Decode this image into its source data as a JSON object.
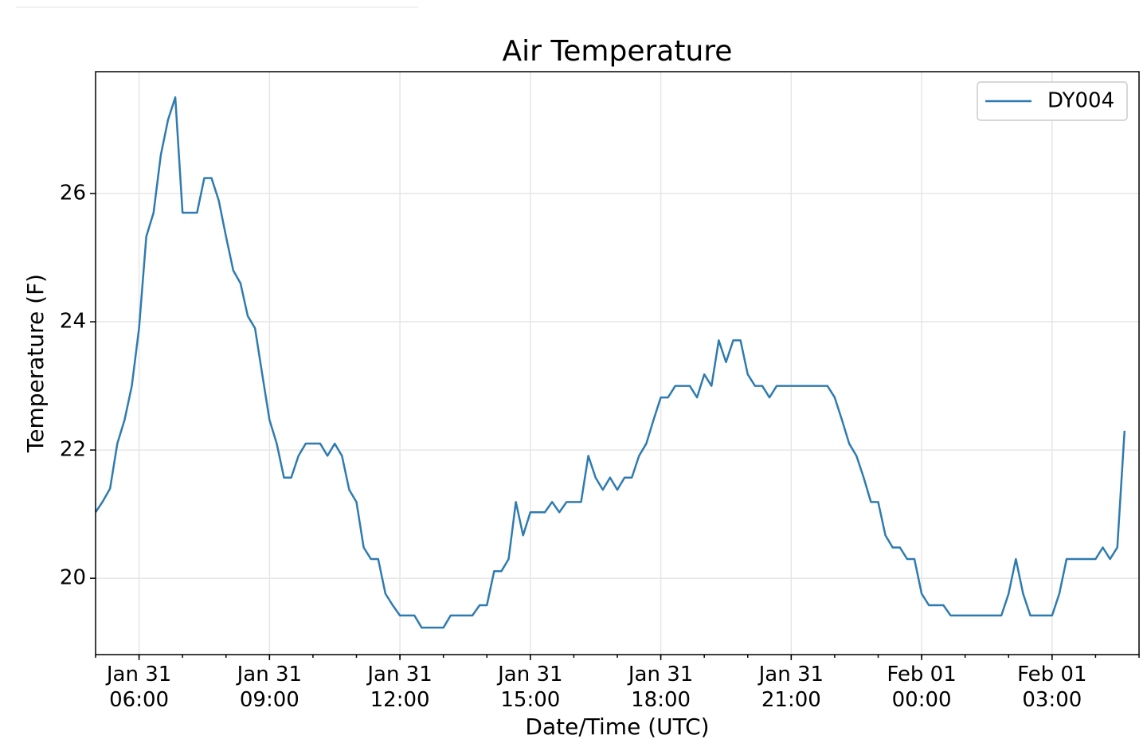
{
  "chart_data": {
    "type": "line",
    "title": "Air Temperature",
    "x_label": "Date/Time (UTC)",
    "y_label": "Temperature (F)",
    "x": [
      "Jan 31 05:00",
      "Jan 31 05:10",
      "Jan 31 05:20",
      "Jan 31 05:30",
      "Jan 31 05:40",
      "Jan 31 05:50",
      "Jan 31 06:00",
      "Jan 31 06:10",
      "Jan 31 06:20",
      "Jan 31 06:30",
      "Jan 31 06:40",
      "Jan 31 06:50",
      "Jan 31 07:00",
      "Jan 31 07:10",
      "Jan 31 07:20",
      "Jan 31 07:30",
      "Jan 31 07:40",
      "Jan 31 07:50",
      "Jan 31 08:00",
      "Jan 31 08:10",
      "Jan 31 08:20",
      "Jan 31 08:30",
      "Jan 31 08:40",
      "Jan 31 08:50",
      "Jan 31 09:00",
      "Jan 31 09:10",
      "Jan 31 09:20",
      "Jan 31 09:30",
      "Jan 31 09:40",
      "Jan 31 09:50",
      "Jan 31 10:00",
      "Jan 31 10:10",
      "Jan 31 10:20",
      "Jan 31 10:30",
      "Jan 31 10:40",
      "Jan 31 10:50",
      "Jan 31 11:00",
      "Jan 31 11:10",
      "Jan 31 11:20",
      "Jan 31 11:30",
      "Jan 31 11:40",
      "Jan 31 11:50",
      "Jan 31 12:00",
      "Jan 31 12:10",
      "Jan 31 12:20",
      "Jan 31 12:30",
      "Jan 31 12:40",
      "Jan 31 12:50",
      "Jan 31 13:00",
      "Jan 31 13:10",
      "Jan 31 13:20",
      "Jan 31 13:30",
      "Jan 31 13:40",
      "Jan 31 13:50",
      "Jan 31 14:00",
      "Jan 31 14:10",
      "Jan 31 14:20",
      "Jan 31 14:30",
      "Jan 31 14:40",
      "Jan 31 14:50",
      "Jan 31 15:00",
      "Jan 31 15:10",
      "Jan 31 15:20",
      "Jan 31 15:30",
      "Jan 31 15:40",
      "Jan 31 15:50",
      "Jan 31 16:00",
      "Jan 31 16:10",
      "Jan 31 16:20",
      "Jan 31 16:30",
      "Jan 31 16:40",
      "Jan 31 16:50",
      "Jan 31 17:00",
      "Jan 31 17:10",
      "Jan 31 17:20",
      "Jan 31 17:30",
      "Jan 31 17:40",
      "Jan 31 17:50",
      "Jan 31 18:00",
      "Jan 31 18:10",
      "Jan 31 18:20",
      "Jan 31 18:30",
      "Jan 31 18:40",
      "Jan 31 18:50",
      "Jan 31 19:00",
      "Jan 31 19:10",
      "Jan 31 19:20",
      "Jan 31 19:30",
      "Jan 31 19:40",
      "Jan 31 19:50",
      "Jan 31 20:00",
      "Jan 31 20:10",
      "Jan 31 20:20",
      "Jan 31 20:30",
      "Jan 31 20:40",
      "Jan 31 20:50",
      "Jan 31 21:00",
      "Jan 31 21:10",
      "Jan 31 21:20",
      "Jan 31 21:30",
      "Jan 31 21:40",
      "Jan 31 21:50",
      "Jan 31 22:00",
      "Jan 31 22:10",
      "Jan 31 22:20",
      "Jan 31 22:30",
      "Jan 31 22:40",
      "Jan 31 22:50",
      "Jan 31 23:00",
      "Jan 31 23:10",
      "Jan 31 23:20",
      "Jan 31 23:30",
      "Jan 31 23:40",
      "Jan 31 23:50",
      "Feb 01 00:00",
      "Feb 01 00:10",
      "Feb 01 00:20",
      "Feb 01 00:30",
      "Feb 01 00:40",
      "Feb 01 00:50",
      "Feb 01 01:00",
      "Feb 01 01:10",
      "Feb 01 01:20",
      "Feb 01 01:30",
      "Feb 01 01:40",
      "Feb 01 01:50",
      "Feb 01 02:00",
      "Feb 01 02:10",
      "Feb 01 02:20",
      "Feb 01 02:30",
      "Feb 01 02:40",
      "Feb 01 02:50",
      "Feb 01 03:00",
      "Feb 01 03:10",
      "Feb 01 03:20",
      "Feb 01 03:30",
      "Feb 01 03:40",
      "Feb 01 03:50",
      "Feb 01 04:00",
      "Feb 01 04:10",
      "Feb 01 04:20",
      "Feb 01 04:30",
      "Feb 01 04:40"
    ],
    "series": [
      {
        "name": "DY004",
        "color": "#2e7bb0",
        "values": [
          21.03,
          21.2,
          21.4,
          22.1,
          22.47,
          23.0,
          23.9,
          25.33,
          25.7,
          26.6,
          27.15,
          27.5,
          25.7,
          25.7,
          25.7,
          26.24,
          26.24,
          25.89,
          25.33,
          24.8,
          24.6,
          24.09,
          23.9,
          23.18,
          22.47,
          22.1,
          21.57,
          21.57,
          21.91,
          22.1,
          22.1,
          22.1,
          21.91,
          22.1,
          21.91,
          21.38,
          21.19,
          20.48,
          20.3,
          20.3,
          19.76,
          19.58,
          19.42,
          19.42,
          19.42,
          19.23,
          19.23,
          19.23,
          19.23,
          19.42,
          19.42,
          19.42,
          19.42,
          19.58,
          19.58,
          20.11,
          20.11,
          20.3,
          21.19,
          20.67,
          21.03,
          21.03,
          21.03,
          21.19,
          21.03,
          21.19,
          21.19,
          21.19,
          21.91,
          21.57,
          21.38,
          21.57,
          21.38,
          21.57,
          21.57,
          21.91,
          22.1,
          22.47,
          22.82,
          22.82,
          23.0,
          23.0,
          23.0,
          22.82,
          23.18,
          23.0,
          23.71,
          23.37,
          23.71,
          23.71,
          23.18,
          23.0,
          23.0,
          22.82,
          23.0,
          23.0,
          23.0,
          23.0,
          23.0,
          23.0,
          23.0,
          23.0,
          22.82,
          22.47,
          22.1,
          21.91,
          21.57,
          21.19,
          21.19,
          20.67,
          20.48,
          20.48,
          20.3,
          20.3,
          19.76,
          19.58,
          19.58,
          19.58,
          19.42,
          19.42,
          19.42,
          19.42,
          19.42,
          19.42,
          19.42,
          19.42,
          19.76,
          20.3,
          19.76,
          19.42,
          19.42,
          19.42,
          19.42,
          19.76,
          20.3,
          20.3,
          20.3,
          20.3,
          20.3,
          20.48,
          20.3,
          20.48,
          22.3
        ]
      }
    ],
    "xlim": [
      "Jan 31 05:00",
      "Feb 01 05:00"
    ],
    "xticks": [
      "Jan 31 06:00",
      "Jan 31 09:00",
      "Jan 31 12:00",
      "Jan 31 15:00",
      "Jan 31 18:00",
      "Jan 31 21:00",
      "Feb 01 00:00",
      "Feb 01 03:00"
    ],
    "ylim": [
      18.81,
      27.9
    ],
    "yticks": [
      20,
      22,
      24,
      26
    ],
    "grid": true,
    "legend": "upper right"
  }
}
